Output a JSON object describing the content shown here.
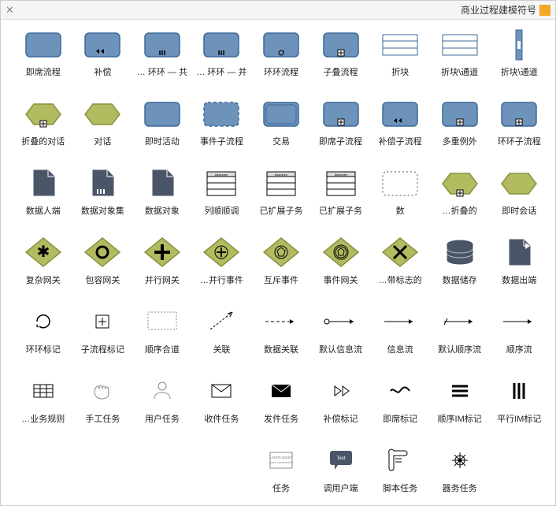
{
  "header": {
    "title": "商业过程建模符号"
  },
  "colors": {
    "blue_fill": "#6d93bb",
    "blue_stroke": "#3d6a99",
    "olive_fill": "#b2bb5f",
    "olive_stroke": "#8a9140",
    "dark_fill": "#4a5568",
    "light_stroke": "#888888",
    "black": "#000000",
    "white": "#ffffff"
  },
  "shapes": [
    {
      "id": "s00",
      "label": "即席流程",
      "type": "rect",
      "fill": "blue",
      "mark": ""
    },
    {
      "id": "s01",
      "label": "补偿",
      "type": "rect",
      "fill": "blue",
      "mark": "rewind"
    },
    {
      "id": "s02",
      "label": "环环 — 共 …",
      "type": "rect",
      "fill": "blue",
      "mark": "bars"
    },
    {
      "id": "s03",
      "label": "环环 — 并 …",
      "type": "rect",
      "fill": "blue",
      "mark": "bars2"
    },
    {
      "id": "s04",
      "label": "环环流程",
      "type": "rect",
      "fill": "blue",
      "mark": "loop"
    },
    {
      "id": "s05",
      "label": "子叠流程",
      "type": "rect",
      "fill": "blue",
      "mark": "plus"
    },
    {
      "id": "s06",
      "label": "折块",
      "type": "lanes",
      "fill": "white"
    },
    {
      "id": "s07",
      "label": "折块\\通道",
      "type": "lanes",
      "fill": "white"
    },
    {
      "id": "s08",
      "label": "折块\\通道",
      "type": "vband",
      "fill": "blue"
    },
    {
      "id": "s10",
      "label": "折叠的对话",
      "type": "hex",
      "fill": "olive",
      "mark": "plus"
    },
    {
      "id": "s11",
      "label": "对话",
      "type": "hex",
      "fill": "olive"
    },
    {
      "id": "s12",
      "label": "即时活动",
      "type": "rect",
      "fill": "blue",
      "style": "solid"
    },
    {
      "id": "s13",
      "label": "事件子流程",
      "type": "rect",
      "fill": "blue",
      "style": "dashed"
    },
    {
      "id": "s14",
      "label": "交易",
      "type": "rect",
      "fill": "blue",
      "style": "double"
    },
    {
      "id": "s15",
      "label": "即席子流程",
      "type": "rect",
      "fill": "blue",
      "mark": "plus"
    },
    {
      "id": "s16",
      "label": "补偿子流程",
      "type": "rect",
      "fill": "blue",
      "mark": "rewind"
    },
    {
      "id": "s17",
      "label": "多重例外",
      "type": "rect",
      "fill": "blue",
      "mark": "plus"
    },
    {
      "id": "s18",
      "label": "环环子流程",
      "type": "rect",
      "fill": "blue",
      "mark": "plus"
    },
    {
      "id": "s20",
      "label": "数据人端",
      "type": "doc",
      "fill": "dark"
    },
    {
      "id": "s21",
      "label": "数据对象集",
      "type": "doc",
      "fill": "dark",
      "mark": "bars"
    },
    {
      "id": "s22",
      "label": "数据对象",
      "type": "doc",
      "fill": "dark"
    },
    {
      "id": "s23",
      "label": "列顺顺调",
      "type": "list",
      "fill": "white"
    },
    {
      "id": "s24",
      "label": "已扩展子务",
      "type": "list",
      "fill": "white"
    },
    {
      "id": "s25",
      "label": "已扩展子务",
      "type": "list",
      "fill": "white"
    },
    {
      "id": "s26",
      "label": "数",
      "type": "rect",
      "fill": "none",
      "style": "dotted"
    },
    {
      "id": "s27",
      "label": "折叠的…",
      "type": "hex",
      "fill": "olive",
      "mark": "plus"
    },
    {
      "id": "s28",
      "label": "即时会话",
      "type": "hex",
      "fill": "olive"
    },
    {
      "id": "s30",
      "label": "复杂网关",
      "type": "diamond",
      "fill": "olive",
      "mark": "star"
    },
    {
      "id": "s31",
      "label": "包容网关",
      "type": "diamond",
      "fill": "olive",
      "mark": "ring"
    },
    {
      "id": "s32",
      "label": "并行网关",
      "type": "diamond",
      "fill": "olive",
      "mark": "plus"
    },
    {
      "id": "s33",
      "label": "并行事件…",
      "type": "diamond",
      "fill": "olive",
      "mark": "plusring"
    },
    {
      "id": "s34",
      "label": "互斥事件",
      "type": "diamond",
      "fill": "olive",
      "mark": "pent"
    },
    {
      "id": "s35",
      "label": "事件网关",
      "type": "diamond",
      "fill": "olive",
      "mark": "pent2"
    },
    {
      "id": "s36",
      "label": "带标志的…",
      "type": "diamond",
      "fill": "olive",
      "mark": "x"
    },
    {
      "id": "s37",
      "label": "数据储存",
      "type": "cylinder",
      "fill": "dark"
    },
    {
      "id": "s38",
      "label": "数据出端",
      "type": "doc",
      "fill": "dark",
      "mark": "arrow"
    },
    {
      "id": "s40",
      "label": "环环标记",
      "type": "glyph",
      "g": "loop"
    },
    {
      "id": "s41",
      "label": "子流程标记",
      "type": "glyph",
      "g": "plusbox"
    },
    {
      "id": "s42",
      "label": "顺序合道",
      "type": "glyph",
      "g": "dots"
    },
    {
      "id": "s43",
      "label": "关联",
      "type": "arrow",
      "style": "shortdash"
    },
    {
      "id": "s44",
      "label": "数据关联",
      "type": "arrow",
      "style": "dash"
    },
    {
      "id": "s45",
      "label": "默认信息流",
      "type": "arrow",
      "style": "solidcirc"
    },
    {
      "id": "s46",
      "label": "信息流",
      "type": "arrow",
      "style": "solid"
    },
    {
      "id": "s47",
      "label": "默认顺序流",
      "type": "arrow",
      "style": "solidslash"
    },
    {
      "id": "s48",
      "label": "顺序流",
      "type": "arrow",
      "style": "solid"
    },
    {
      "id": "s50",
      "label": "业务规则…",
      "type": "mini",
      "g": "table"
    },
    {
      "id": "s51",
      "label": "手工任务",
      "type": "mini",
      "g": "hand"
    },
    {
      "id": "s52",
      "label": "用户任务",
      "type": "mini",
      "g": "user"
    },
    {
      "id": "s53",
      "label": "收件任务",
      "type": "mini",
      "g": "mail"
    },
    {
      "id": "s54",
      "label": "发件任务",
      "type": "mini",
      "g": "mailf"
    },
    {
      "id": "s55",
      "label": "补偿标记",
      "type": "mini",
      "g": "ff"
    },
    {
      "id": "s56",
      "label": "即席标记",
      "type": "mini",
      "g": "tilde"
    },
    {
      "id": "s57",
      "label": "顺序IM标记",
      "type": "mini",
      "g": "hbars"
    },
    {
      "id": "s58",
      "label": "平行IM标记",
      "type": "mini",
      "g": "vbars"
    },
    {
      "id": "s60",
      "label": "",
      "type": "blank"
    },
    {
      "id": "s61",
      "label": "",
      "type": "blank"
    },
    {
      "id": "s62",
      "label": "",
      "type": "blank"
    },
    {
      "id": "s63",
      "label": "",
      "type": "blank"
    },
    {
      "id": "s64",
      "label": "任务",
      "type": "mini",
      "g": "textbox"
    },
    {
      "id": "s65",
      "label": "调用户端",
      "type": "mini",
      "g": "callout"
    },
    {
      "id": "s66",
      "label": "脚本任务",
      "type": "mini",
      "g": "scroll"
    },
    {
      "id": "s67",
      "label": "器务任务",
      "type": "mini",
      "g": "gear"
    },
    {
      "id": "s68",
      "label": "",
      "type": "blank"
    }
  ]
}
